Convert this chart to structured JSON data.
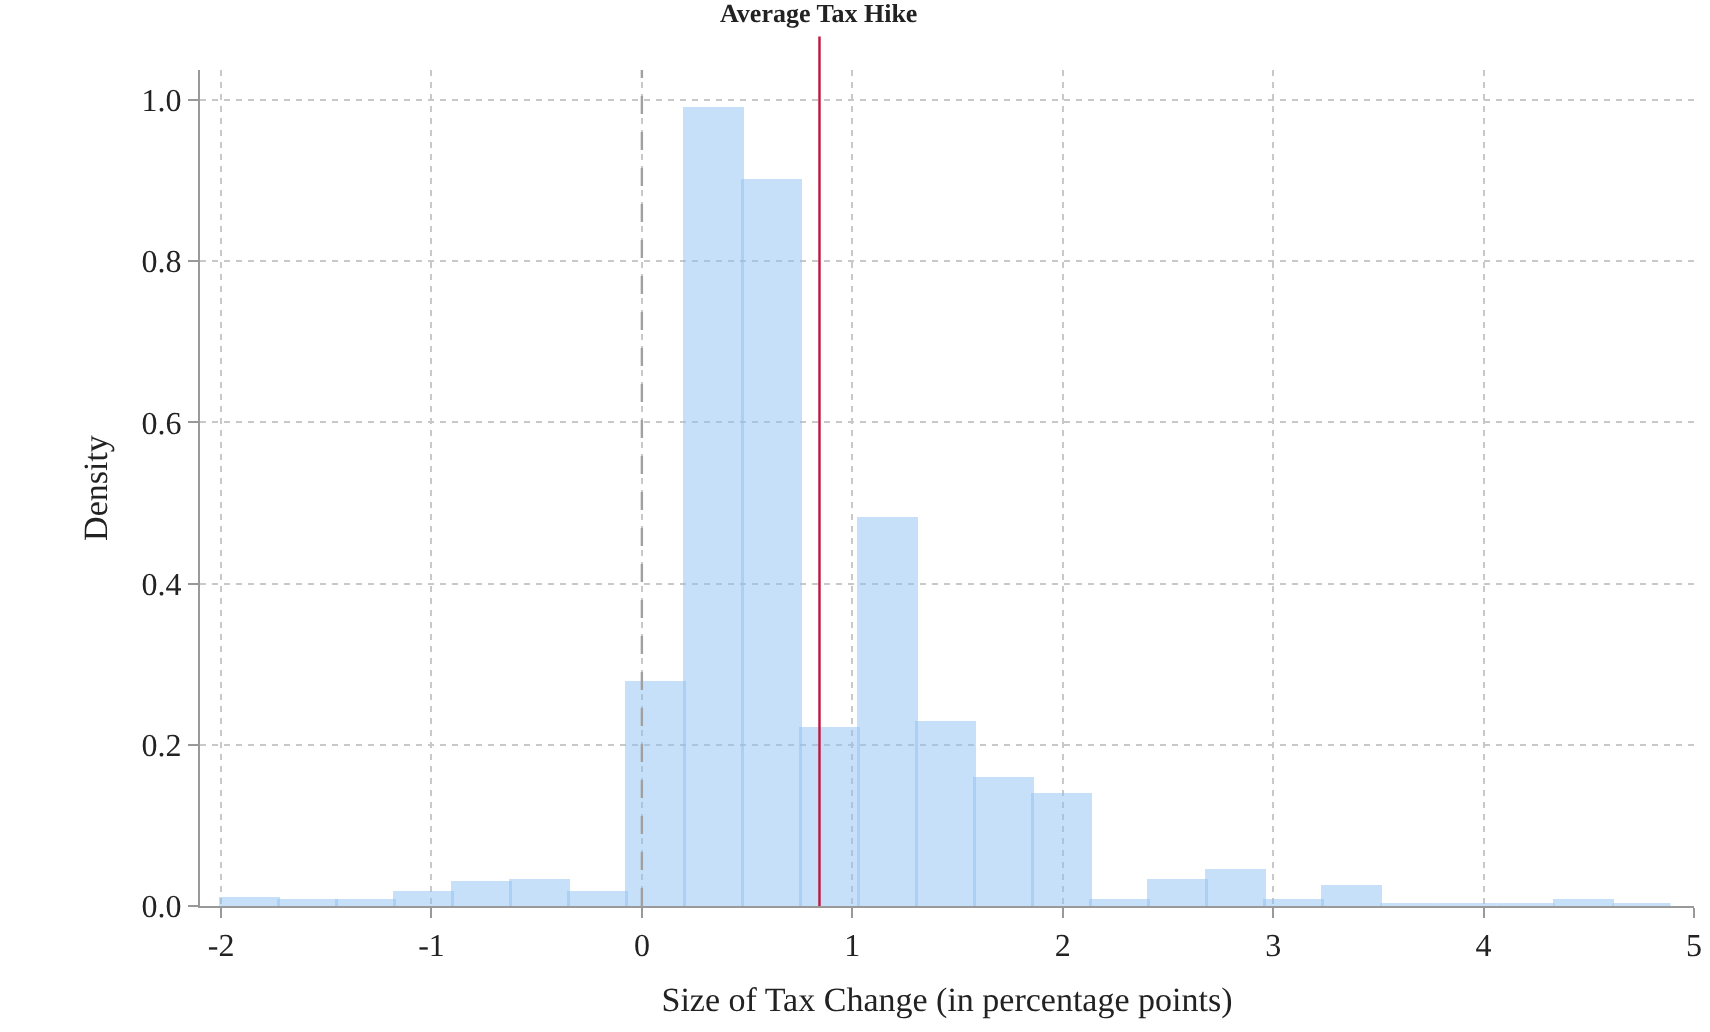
{
  "chart_data": {
    "type": "histogram",
    "xlabel": "Size of Tax Change (in percentage points)",
    "ylabel": "Density",
    "bins": [
      -2,
      -1.724,
      -1.448,
      -1.172,
      -0.896,
      -0.62,
      -0.344,
      -0.068,
      0.208,
      0.484,
      0.76,
      1.036,
      1.312,
      1.588,
      1.864,
      2.14,
      2.416,
      2.692,
      2.968,
      3.244,
      3.52,
      3.796,
      4.072,
      4.348,
      4.624,
      4.9
    ],
    "values": [
      0.007,
      0.004,
      0.006,
      0.014,
      0.027,
      0.031,
      0.016,
      0.275,
      0.988,
      0.898,
      0.218,
      0.479,
      0.226,
      0.156,
      0.136,
      0.006,
      0.031,
      0.043,
      0.006,
      0.023,
      0,
      0,
      0,
      0.004,
      0
    ],
    "color": "#90c2f5",
    "xlim": [
      -2.1,
      5
    ],
    "xticks": [
      -2,
      -1,
      0,
      1,
      2,
      3,
      4,
      5
    ],
    "ylim": [
      0,
      1.037
    ],
    "yticks": [
      {
        "value": 0,
        "label": "0.0"
      },
      {
        "value": 0.2,
        "label": "0.2"
      },
      {
        "value": 0.4,
        "label": "0.4"
      },
      {
        "value": 0.6,
        "label": "0.6"
      },
      {
        "value": 0.8,
        "label": "0.8"
      },
      {
        "value": 1,
        "label": "1.0"
      }
    ],
    "grid": true,
    "ref_lines": [
      {
        "axis": "x",
        "value": 0,
        "color": "#a0a0a0",
        "line_style": "dashed"
      },
      {
        "axis": "x",
        "value": 0.844,
        "label": "Average Tax Hike",
        "color": "#c0143c",
        "line_style": "solid"
      }
    ]
  }
}
